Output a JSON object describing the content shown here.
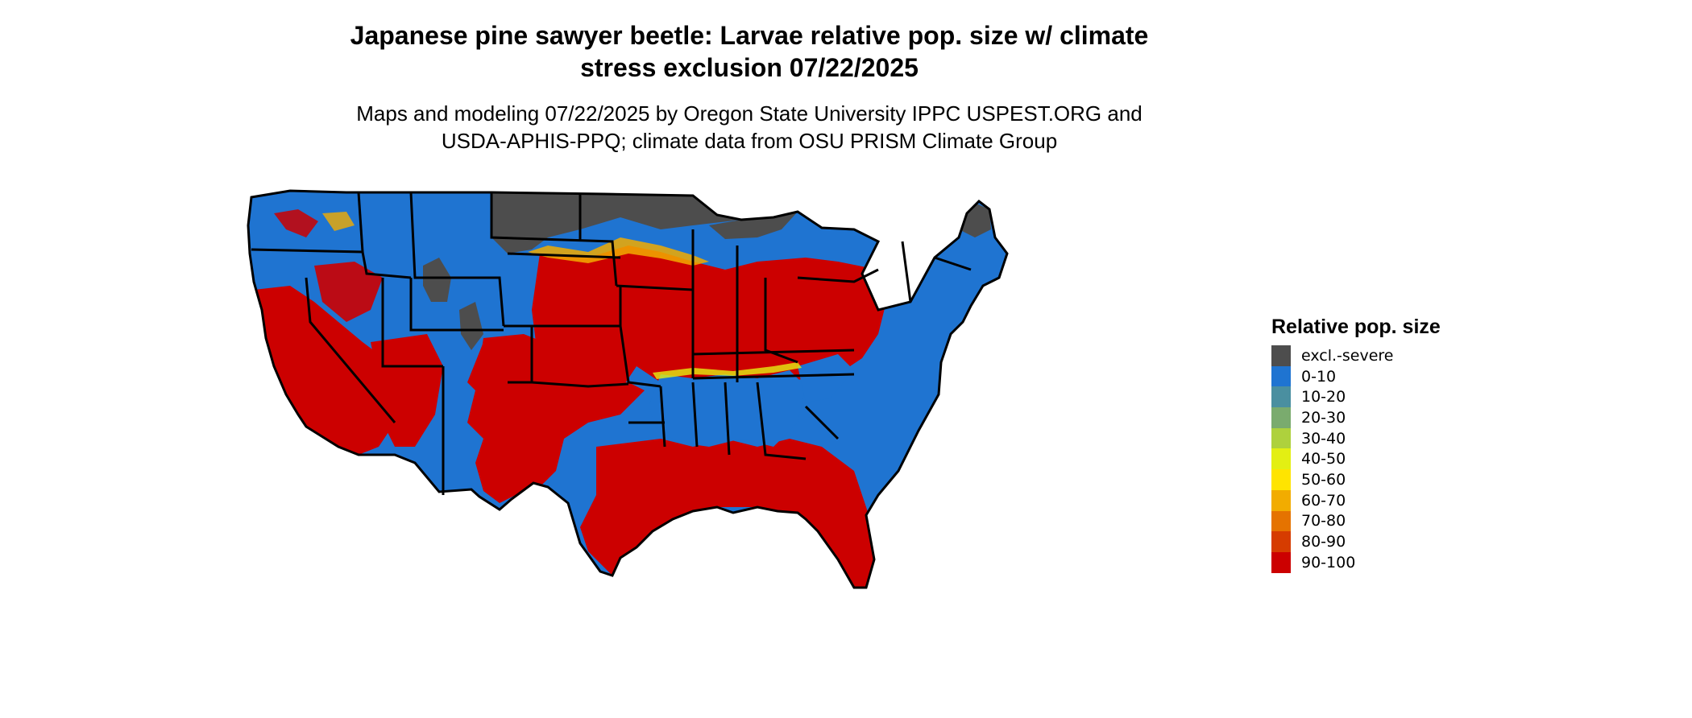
{
  "title": {
    "line1": "Japanese pine sawyer beetle: Larvae relative pop. size w/ climate",
    "line2": "stress exclusion 07/22/2025"
  },
  "subtitle": {
    "line1": "Maps and modeling 07/22/2025 by Oregon State University IPPC USPEST.ORG and",
    "line2": "USDA-APHIS-PPQ; climate data from OSU PRISM Climate Group"
  },
  "legend": {
    "title": "Relative pop. size",
    "items": [
      {
        "label": "excl.-severe",
        "color": "#4d4d4d"
      },
      {
        "label": "0-10",
        "color": "#1f74d1"
      },
      {
        "label": "10-20",
        "color": "#4a8fa0"
      },
      {
        "label": "20-30",
        "color": "#7aab6e"
      },
      {
        "label": "30-40",
        "color": "#aed13d"
      },
      {
        "label": "40-50",
        "color": "#e3ef13"
      },
      {
        "label": "50-60",
        "color": "#ffe400"
      },
      {
        "label": "60-70",
        "color": "#f2ac00"
      },
      {
        "label": "70-80",
        "color": "#e57300"
      },
      {
        "label": "80-90",
        "color": "#d63c00"
      },
      {
        "label": "90-100",
        "color": "#cc0000"
      }
    ]
  },
  "map_regions": [
    {
      "name": "northern-plains-exclusion",
      "class": "excl.-severe"
    },
    {
      "name": "upper-michigan-exclusion",
      "class": "excl.-severe"
    },
    {
      "name": "maine-exclusion",
      "class": "excl.-severe"
    },
    {
      "name": "wyoming-exclusion",
      "class": "excl.-severe"
    },
    {
      "name": "colorado-exclusion",
      "class": "excl.-severe"
    },
    {
      "name": "northwest-low",
      "class": "0-10"
    },
    {
      "name": "central-high",
      "class": "90-100"
    },
    {
      "name": "southeast-low",
      "class": "0-10"
    },
    {
      "name": "florida-high",
      "class": "90-100"
    },
    {
      "name": "california-high",
      "class": "90-100"
    },
    {
      "name": "texas-high",
      "class": "90-100"
    }
  ]
}
